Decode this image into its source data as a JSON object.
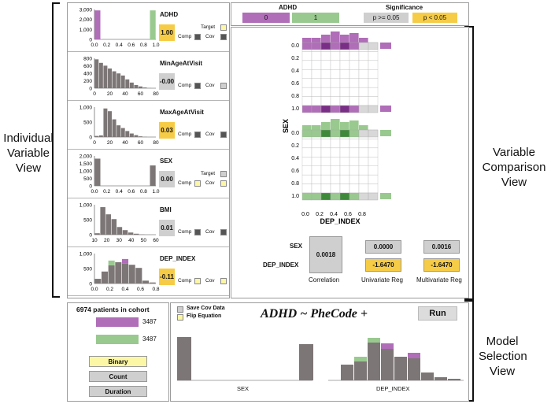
{
  "section_labels": {
    "individual": "Individual Variable View",
    "comparison": "Variable Comparison View",
    "model": "Model Selection View"
  },
  "colors": {
    "purple": "#b06db8",
    "green": "#99c98f",
    "grey": "#7d7676",
    "yellow": "#f6cc47",
    "light_yellow": "#fcf7a4",
    "light_grey": "#cfcfcf"
  },
  "variables": [
    {
      "name": "ADHD",
      "score": "1.00",
      "score_sig": true,
      "target_label": "Target",
      "comp_label": "Comp",
      "cov_label": "Cov",
      "has_target": true,
      "yticks": [
        "3,000",
        "2,000",
        "1,000",
        "0"
      ],
      "xticks": [
        "0.0",
        "0.2",
        "0.4",
        "0.6",
        "0.8",
        "1.0"
      ]
    },
    {
      "name": "MinAgeAtVisit",
      "score": "-0.00",
      "score_sig": false,
      "comp_label": "Comp",
      "cov_label": "Cov",
      "has_target": false,
      "yticks": [
        "800",
        "600",
        "400",
        "200",
        "0"
      ],
      "xticks": [
        "0",
        "20",
        "40",
        "60",
        "80"
      ]
    },
    {
      "name": "MaxAgeAtVisit",
      "score": "0.03",
      "score_sig": true,
      "comp_label": "Comp",
      "cov_label": "Cov",
      "has_target": false,
      "yticks": [
        "1,000",
        "500",
        "0"
      ],
      "xticks": [
        "0",
        "20",
        "40",
        "60",
        "80"
      ]
    },
    {
      "name": "SEX",
      "score": "0.00",
      "score_sig": false,
      "target_label": "Target",
      "comp_label": "Comp",
      "cov_label": "Cov",
      "has_target": true,
      "yticks": [
        "2,000",
        "1,500",
        "1,000",
        "500",
        "0"
      ],
      "xticks": [
        "0.0",
        "0.2",
        "0.4",
        "0.6",
        "0.8",
        "1.0"
      ]
    },
    {
      "name": "BMI",
      "score": "0.01",
      "score_sig": false,
      "comp_label": "Comp",
      "cov_label": "Cov",
      "has_target": false,
      "yticks": [
        "1,000",
        "500",
        "0"
      ],
      "xticks": [
        "10",
        "20",
        "30",
        "40",
        "50",
        "60"
      ]
    },
    {
      "name": "DEP_INDEX",
      "score": "-0.11",
      "score_sig": true,
      "comp_label": "Comp",
      "cov_label": "Cov",
      "has_target": false,
      "yticks": [
        "1,000",
        "500",
        "0"
      ],
      "xticks": [
        "0.0",
        "0.2",
        "0.4",
        "0.6",
        "0.8"
      ]
    }
  ],
  "legend": {
    "adhd_title": "ADHD",
    "adhd_0": "0",
    "adhd_1": "1",
    "sig_title": "Significance",
    "sig_low": "p >= 0.05",
    "sig_high": "p < 0.05"
  },
  "comparison": {
    "y_label": "SEX",
    "x_label": "DEP_INDEX",
    "y_ticks": [
      "0.0",
      "0.2",
      "0.4",
      "0.6",
      "0.8",
      "1.0"
    ],
    "x_ticks": [
      "0.0",
      "0.2",
      "0.4",
      "0.6",
      "0.8"
    ],
    "row_sex": "SEX",
    "row_dep": "DEP_INDEX",
    "corr_value": "0.0018",
    "uni_sex": "0.0000",
    "uni_dep": "-1.6470",
    "multi_sex": "0.0016",
    "multi_dep": "-1.6470",
    "corr_label": "Correlation",
    "uni_label": "Univariate Reg",
    "multi_label": "Multivariate Reg"
  },
  "cohort": {
    "title": "6974 patients in cohort",
    "count_purple": "3487",
    "count_green": "3487"
  },
  "buttons": {
    "binary": "Binary",
    "count": "Count",
    "duration": "Duration"
  },
  "model": {
    "save_cov": "Save Cov Data",
    "flip_eq": "Flip Equation",
    "equation": "ADHD ~ PheCode +",
    "run": "Run",
    "sex_label": "SEX",
    "dep_label": "DEP_INDEX"
  }
}
